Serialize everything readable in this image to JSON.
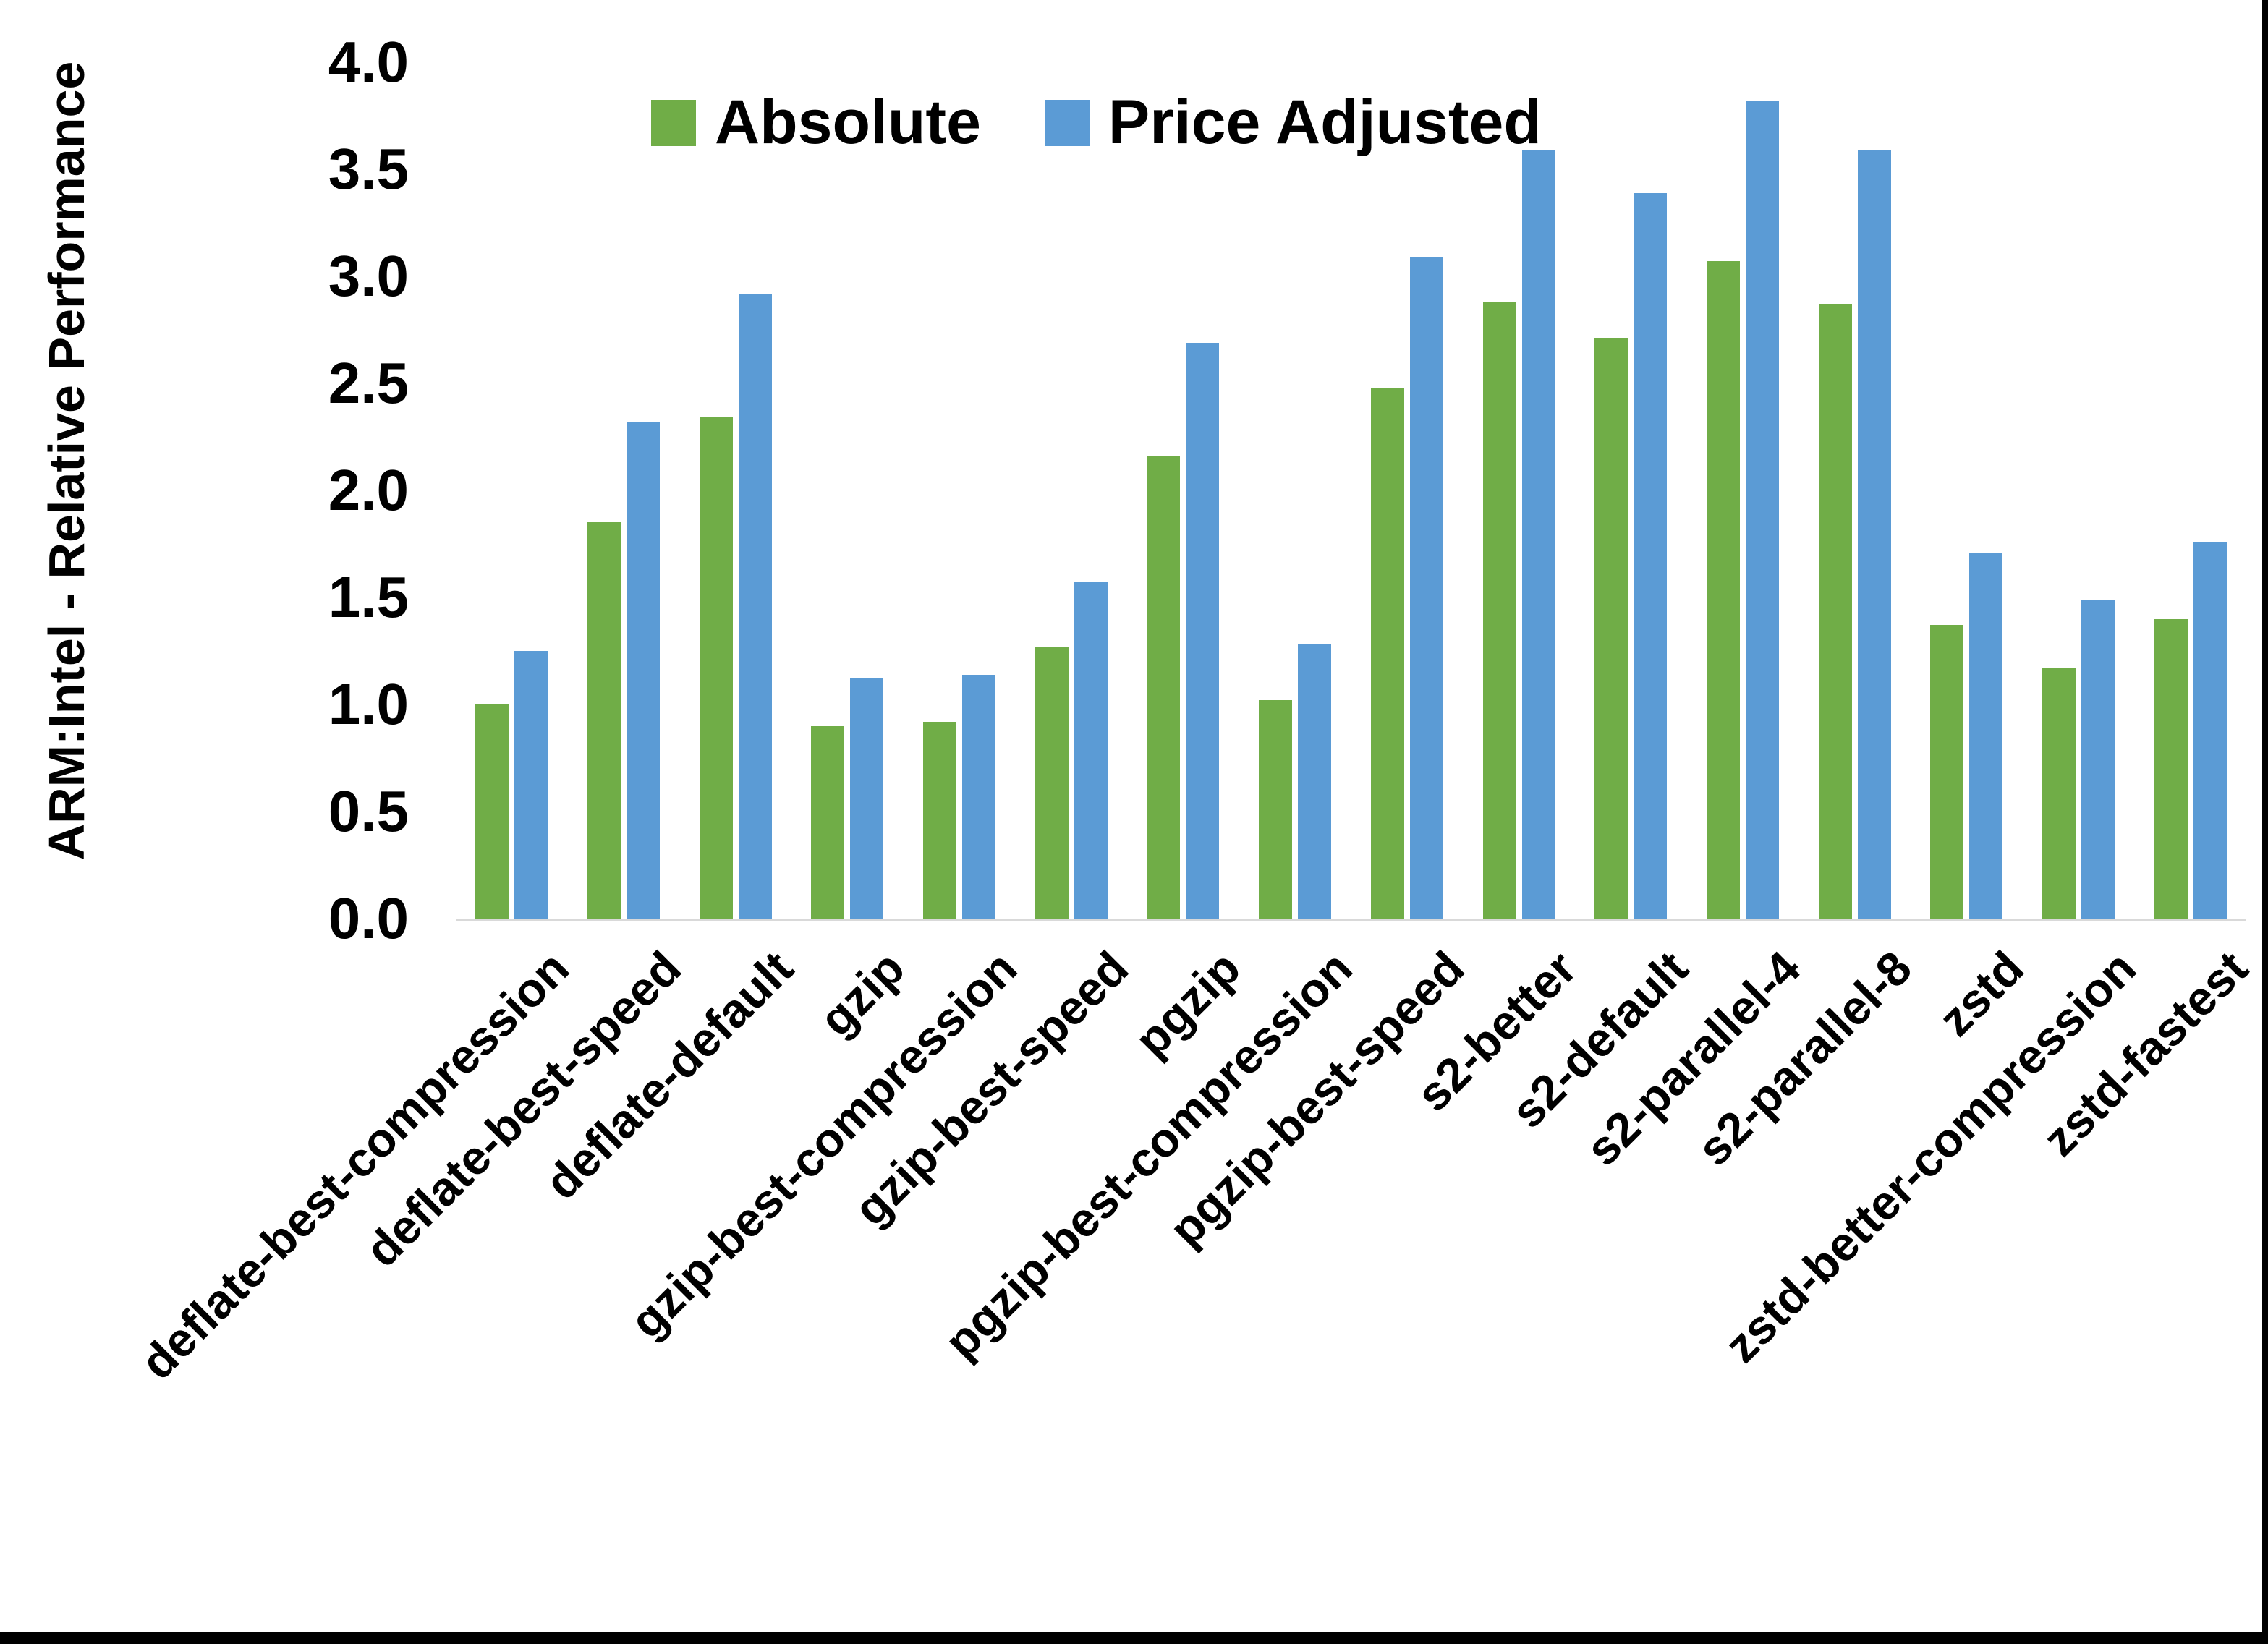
{
  "chart_data": {
    "type": "bar",
    "title": "",
    "xlabel": "",
    "ylabel": "ARM:Intel - Relative Performance",
    "ylim": [
      0.0,
      4.0
    ],
    "ytick_step": 0.5,
    "ytick_labels": [
      "0.0",
      "0.5",
      "1.0",
      "1.5",
      "2.0",
      "2.5",
      "3.0",
      "3.5",
      "4.0"
    ],
    "grid": false,
    "legend_position": "top-center",
    "categories": [
      "deflate-best-compression",
      "deflate-best-speed",
      "deflate-default",
      "gzip",
      "gzip-best-compression",
      "gzip-best-speed",
      "pgzip",
      "pgzip-best-compression",
      "pgzip-best-speed",
      "s2-better",
      "s2-default",
      "s2-parallel-4",
      "s2-parallel-8",
      "zstd",
      "zstd-better-compression",
      "zstd-fastest"
    ],
    "series": [
      {
        "name": "Absolute",
        "color": "#70AD47",
        "values": [
          1.0,
          1.85,
          2.34,
          0.9,
          0.92,
          1.27,
          2.16,
          1.02,
          2.48,
          2.88,
          2.71,
          3.07,
          2.87,
          1.37,
          1.17,
          1.4
        ]
      },
      {
        "name": "Price Adjusted",
        "color": "#5B9BD5",
        "values": [
          1.25,
          2.32,
          2.92,
          1.12,
          1.14,
          1.57,
          2.69,
          1.28,
          3.09,
          3.59,
          3.39,
          3.82,
          3.59,
          1.71,
          1.49,
          1.76
        ]
      }
    ],
    "axis_line_color": "#D9D9D9",
    "background_color": "#FFFFFF",
    "edge_border_color": "#000000"
  }
}
